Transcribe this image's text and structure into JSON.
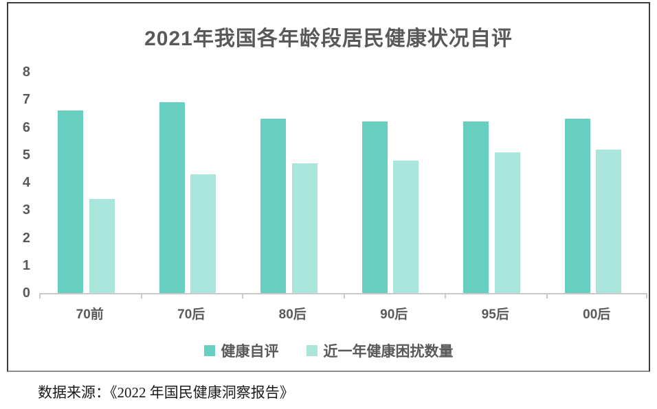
{
  "title": "2021年我国各年龄段居民健康状况自评",
  "source_note": "数据来源：《2022 年国民健康洞察报告》",
  "colors": {
    "series1": "#68CEC0",
    "series2": "#AAE5DB",
    "text_gray": "#595959",
    "axis_gray": "#C9C9C9",
    "frame_dark": "#3B3B3B",
    "frame_bottom": "#8C8C8C"
  },
  "chart_data": {
    "type": "bar",
    "title": "2021年我国各年龄段居民健康状况自评",
    "categories": [
      "70前",
      "70后",
      "80后",
      "90后",
      "95后",
      "00后"
    ],
    "series": [
      {
        "name": "健康自评",
        "color": "#68CEC0",
        "values": [
          6.6,
          6.9,
          6.3,
          6.2,
          6.2,
          6.3
        ]
      },
      {
        "name": "近一年健康困扰数量",
        "color": "#AAE5DB",
        "values": [
          3.4,
          4.3,
          4.7,
          4.8,
          5.1,
          5.2
        ]
      }
    ],
    "xlabel": "",
    "ylabel": "",
    "ylim": [
      0,
      8
    ],
    "yticks": [
      0,
      1,
      2,
      3,
      4,
      5,
      6,
      7,
      8
    ],
    "grid": false,
    "legend_position": "bottom"
  }
}
